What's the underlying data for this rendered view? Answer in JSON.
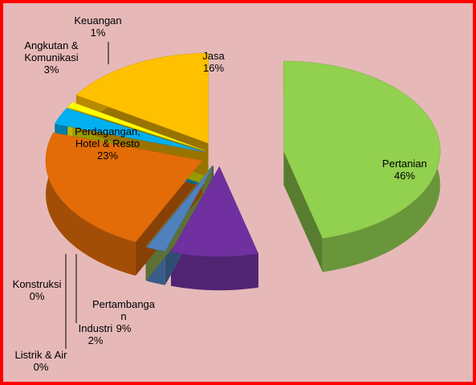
{
  "chart_data": {
    "type": "pie",
    "categories": [
      "Pertanian",
      "Pertambanga\nn",
      "Industri",
      "Listrik & Air",
      "Konstruksi",
      "Perdagangan,\nHotel & Resto",
      "Angkutan &\nKomunikasi",
      "Keuangan",
      "Jasa"
    ],
    "values": [
      46,
      9,
      2,
      0,
      0,
      23,
      3,
      1,
      16
    ],
    "value_labels": [
      "46%",
      "9%",
      "2%",
      "0%",
      "0%",
      "23%",
      "3%",
      "1%",
      "16%"
    ],
    "colors": [
      "#92d050",
      "#7030a0",
      "#4f81bd",
      "#2e8b57",
      "#9bbb59",
      "#e36c09",
      "#00b0f0",
      "#ffff00",
      "#ffc000"
    ]
  }
}
